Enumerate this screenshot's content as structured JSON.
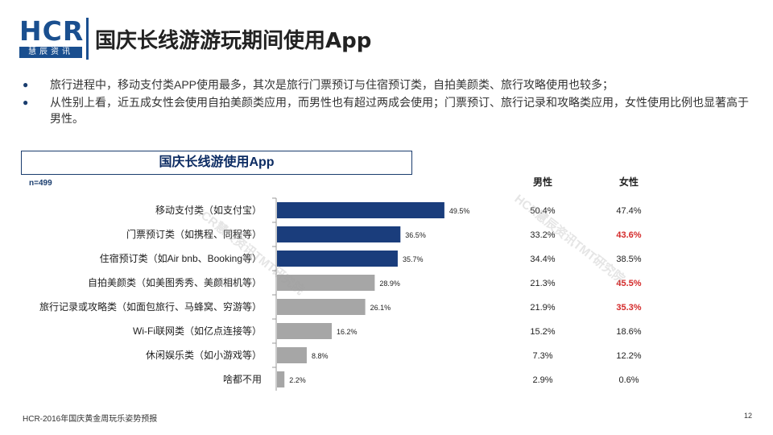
{
  "header": {
    "logo_text": "HCR",
    "logo_sub": "慧辰资讯",
    "title": "国庆长线游游玩期间使用App"
  },
  "bullets": [
    "旅行进程中，移动支付类APP使用最多，其次是旅行门票预订与住宿预订类，自拍美颜类、旅行攻略使用也较多；",
    "从性别上看，近五成女性会使用自拍美颜类应用，而男性也有超过两成会使用；门票预订、旅行记录和攻略类应用，女性使用比例也显著高于男性。"
  ],
  "chart_box_title": "国庆长线游使用App",
  "sample_note": "n=499",
  "columns": {
    "male": "男性",
    "female": "女性"
  },
  "watermark": "HCR慧辰资讯TMT研究院",
  "footer": "HCR-2016年国庆黄金周玩乐姿势预报",
  "page_number": "12",
  "colors": {
    "primary_bar": "#1a3d7c",
    "secondary_bar": "#a6a6a6",
    "highlight": "#d42a2a",
    "brand": "#1a4f8f"
  },
  "chart_data": {
    "type": "bar",
    "orientation": "horizontal",
    "categories": [
      "移动支付类（如支付宝）",
      "门票预订类（如携程、同程等）",
      "住宿预订类（如Air bnb、Booking等）",
      "自拍美颜类（如美图秀秀、美颜相机等）",
      "旅行记录或攻略类（如面包旅行、马蜂窝、穷游等）",
      "Wi-Fi联网类（如亿点连接等）",
      "休闲娱乐类（如小游戏等）",
      "啥都不用"
    ],
    "values": [
      49.5,
      36.5,
      35.7,
      28.9,
      26.1,
      16.2,
      8.8,
      2.2
    ],
    "value_labels": [
      "49.5%",
      "36.5%",
      "35.7%",
      "28.9%",
      "26.1%",
      "16.2%",
      "8.8%",
      "2.2%"
    ],
    "highlighted_count": 3,
    "xlim": [
      0,
      100
    ],
    "male": [
      "50.4%",
      "33.2%",
      "34.4%",
      "21.3%",
      "21.9%",
      "15.2%",
      "7.3%",
      "2.9%"
    ],
    "female": [
      "47.4%",
      "43.6%",
      "38.5%",
      "45.5%",
      "35.3%",
      "18.6%",
      "12.2%",
      "0.6%"
    ],
    "female_highlight": [
      false,
      true,
      false,
      true,
      true,
      false,
      false,
      false
    ]
  }
}
